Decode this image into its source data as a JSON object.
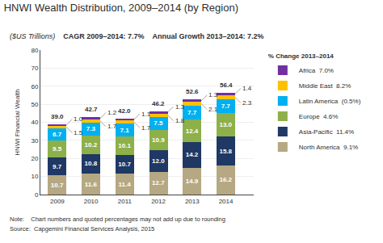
{
  "chart_data": {
    "type": "bar",
    "stacked": true,
    "data_labels": true,
    "grid": true,
    "legend": "right",
    "title": "HNWI Wealth Distribution, 2009–2014 (by Region)",
    "subtitle": [
      "($US Trillions)",
      "CAGR 2009–2014:",
      "7.7%",
      "Annual Growth 2013–2014:",
      "7.2%"
    ],
    "ylabel": "HNWI Financial Wealth",
    "note": "Note:    Chart numbers and quoted percentages may not add up due to rounding",
    "source": "Source:  Capgemini Financial Services Analysis, 2015",
    "categories": [
      "2009",
      "2010",
      "2011",
      "2012",
      "2013",
      "2014"
    ],
    "series": [
      {
        "name": "North America",
        "color": "#b5a882",
        "values": [
          10.7,
          11.6,
          11.4,
          12.7,
          14.9,
          16.2
        ],
        "change": "9.1%"
      },
      {
        "name": "Asia-Pacific",
        "color": "#1f3864",
        "values": [
          9.7,
          10.8,
          10.7,
          12.0,
          14.2,
          15.8
        ],
        "change": "11.4%",
        "value_labels": [
          "9.7",
          "10.8",
          "10.7",
          "12.0",
          "14.2",
          "15.8"
        ]
      },
      {
        "name": "Europe",
        "color": "#8db04a",
        "values": [
          9.5,
          10.2,
          10.1,
          10.9,
          12.4,
          13.0
        ],
        "change": "4.6%",
        "value_labels": [
          "9.5",
          "10.2",
          "10.1",
          "10.9",
          "12.4",
          "13.0"
        ]
      },
      {
        "name": "Latin America",
        "color": "#00b0f0",
        "values": [
          6.7,
          7.3,
          7.1,
          7.5,
          7.7,
          7.7
        ],
        "change": "(0.5%)"
      },
      {
        "name": "Middle East",
        "color": "#ffc000",
        "values": [
          1.5,
          1.7,
          1.7,
          1.8,
          2.1,
          2.3
        ],
        "change": "8.2%"
      },
      {
        "name": "Africa",
        "color": "#7030a0",
        "values": [
          1.0,
          1.2,
          1.1,
          1.3,
          1.3,
          1.4
        ],
        "change": "7.0%",
        "value_labels": [
          "1.0",
          "1.2",
          "1.1",
          "1.3",
          "1.3",
          "1.4"
        ]
      }
    ],
    "callouts": [
      "Middle East",
      "Africa"
    ],
    "totals": [
      39.0,
      42.7,
      42.0,
      46.2,
      52.6,
      56.4
    ],
    "total_labels": [
      "39.0",
      "42.7",
      "42.0",
      "46.2",
      "52.6",
      "56.4"
    ],
    "legend_title": "% Change 2013–2014",
    "ylim": [
      0,
      80
    ],
    "yticks": [
      0,
      10,
      20,
      30,
      40,
      50,
      60,
      70,
      80
    ]
  }
}
